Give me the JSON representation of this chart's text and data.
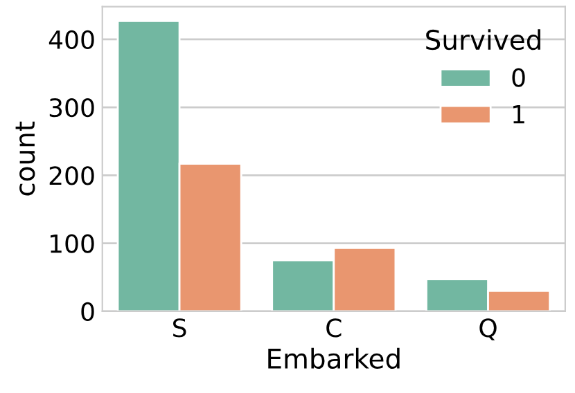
{
  "chart_data": {
    "type": "bar",
    "xlabel": "Embarked",
    "ylabel": "count",
    "legend_title": "Survived",
    "categories": [
      "S",
      "C",
      "Q"
    ],
    "series": [
      {
        "name": "0",
        "color": "#72b7a1",
        "values": [
          427,
          75,
          47
        ]
      },
      {
        "name": "1",
        "color": "#e9966f",
        "values": [
          217,
          93,
          30
        ]
      }
    ],
    "ylim": [
      0,
      448
    ],
    "yticks": [
      0,
      100,
      200,
      300,
      400
    ],
    "grid": "y",
    "legend": "top right"
  }
}
